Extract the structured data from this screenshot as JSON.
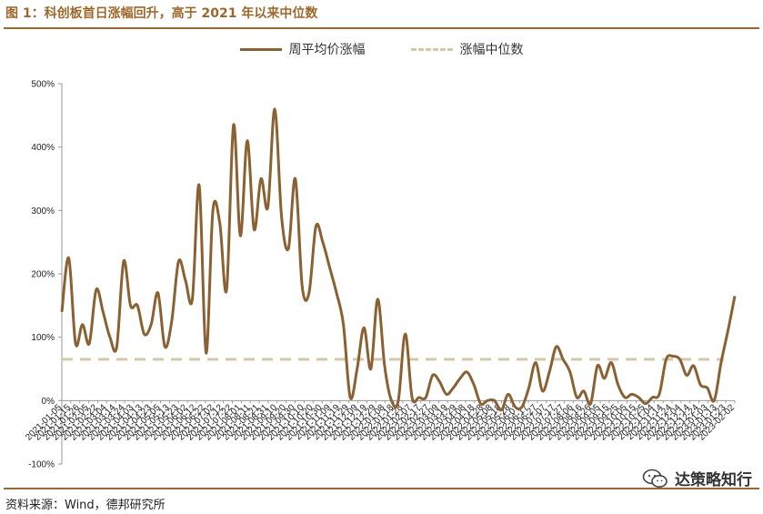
{
  "title": "图 1：科创板首日涨幅回升，高于 2021 年以来中位数",
  "source": "资料来源：Wind，德邦研究所",
  "watermark": "达策略知行",
  "colors": {
    "accent": "#a0672a",
    "series": "#8b6132",
    "median": "#d8c7a6"
  },
  "chart_data": {
    "type": "line",
    "legend_position": "top-center",
    "grid": false,
    "ylim": [
      -100,
      500
    ],
    "yticks": [
      "-100%",
      "0%",
      "100%",
      "200%",
      "300%",
      "400%",
      "500%"
    ],
    "ytick_values": [
      -100,
      0,
      100,
      200,
      300,
      400,
      500
    ],
    "x_tick_labels": [
      "2021-01-05",
      "2021-01-15",
      "2021-01-26",
      "2021-02-05",
      "2021-02-22",
      "2021-03-04",
      "2021-03-14",
      "2021-03-24",
      "2021-04-03",
      "2021-04-13",
      "2021-04-23",
      "2021-05-05",
      "2021-05-13",
      "2021-05-23",
      "2021-06-02",
      "2021-06-12",
      "2021-06-22",
      "2021-07-02",
      "2021-07-12",
      "2021-07-22",
      "2021-08-01",
      "2021-08-11",
      "2021-08-21",
      "2021-08-31",
      "2021-09-10",
      "2021-09-20",
      "2021-09-30",
      "2021-10-10",
      "2021-10-20",
      "2021-10-30",
      "2021-11-09",
      "2021-11-19",
      "2021-11-29",
      "2021-12-09",
      "2021-12-19",
      "2021-12-29",
      "2022-01-08",
      "2022-01-18",
      "2022-01-28",
      "2022-02-07",
      "2022-02-17",
      "2022-02-27",
      "2022-03-09",
      "2022-03-19",
      "2022-03-29",
      "2022-04-08",
      "2022-04-18",
      "2022-04-28",
      "2022-05-08",
      "2022-05-18",
      "2022-05-28",
      "2022-06-07",
      "2022-06-17",
      "2022-06-27",
      "2022-07-07",
      "2022-07-17",
      "2022-07-27",
      "2022-08-06",
      "2022-08-16",
      "2022-08-26",
      "2022-09-05",
      "2022-09-15",
      "2022-09-25",
      "2022-10-05",
      "2022-10-15",
      "2022-10-25",
      "2022-11-04",
      "2022-11-14",
      "2022-11-24",
      "2022-12-04",
      "2022-12-14",
      "2022-12-24",
      "2023-01-03",
      "2023-01-13",
      "2023-01-23",
      "2023-02-02"
    ],
    "series": [
      {
        "name": "周平均价涨幅",
        "style": "solid",
        "values": [
          140,
          225,
          90,
          120,
          90,
          175,
          140,
          100,
          85,
          220,
          150,
          150,
          105,
          120,
          170,
          85,
          125,
          220,
          190,
          160,
          340,
          75,
          300,
          280,
          175,
          435,
          260,
          410,
          270,
          350,
          305,
          460,
          290,
          240,
          350,
          180,
          170,
          275,
          250,
          210,
          170,
          120,
          5,
          50,
          115,
          50,
          160,
          55,
          0,
          0,
          105,
          5,
          5,
          5,
          40,
          30,
          10,
          20,
          35,
          45,
          25,
          -5,
          0,
          0,
          -15,
          10,
          -10,
          -10,
          20,
          60,
          15,
          45,
          85,
          65,
          45,
          5,
          15,
          -5,
          55,
          35,
          60,
          25,
          5,
          10,
          5,
          -5,
          5,
          10,
          65,
          70,
          65,
          40,
          55,
          25,
          20,
          0,
          60,
          110,
          165
        ]
      },
      {
        "name": "涨幅中位数",
        "style": "dashed",
        "values": [
          65
        ]
      }
    ]
  }
}
